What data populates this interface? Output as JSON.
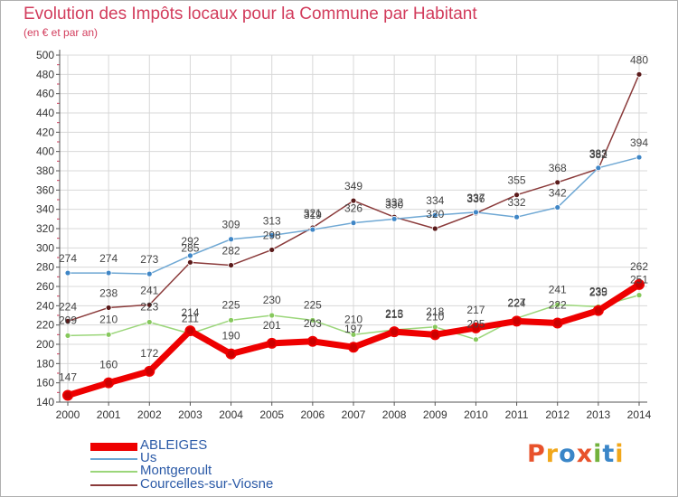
{
  "header": {
    "title": "Evolution des Impôts locaux pour la Commune par Habitant",
    "subtitle": "(en € et par an)"
  },
  "logo": {
    "text": "Proxiti",
    "colors": [
      "#e8522b",
      "#f1a71a",
      "#3a86c8",
      "#e8522b",
      "#73b23c",
      "#3a86c8",
      "#f1a71a"
    ]
  },
  "chart_data": {
    "type": "line",
    "x": [
      2000,
      2001,
      2002,
      2003,
      2004,
      2005,
      2006,
      2007,
      2008,
      2009,
      2010,
      2011,
      2012,
      2013,
      2014
    ],
    "ylim": [
      140,
      500
    ],
    "yticks": [
      140,
      160,
      180,
      200,
      220,
      240,
      260,
      280,
      300,
      320,
      340,
      360,
      380,
      400,
      420,
      440,
      460,
      480,
      500
    ],
    "grid": true,
    "legend": "bottom-left",
    "series": [
      {
        "name": "ABLEIGES",
        "color": "#ee0000",
        "values": [
          147,
          160,
          172,
          214,
          190,
          201,
          203,
          197,
          213,
          210,
          217,
          224,
          222,
          235,
          262
        ],
        "labels": [
          "147",
          "160",
          "172",
          "214",
          "190",
          "201",
          "203",
          "197",
          "213",
          "210",
          "217",
          "224",
          "222",
          "235",
          "262"
        ]
      },
      {
        "name": "Us",
        "color": "#6fa8d4",
        "values": [
          274,
          274,
          273,
          292,
          309,
          313,
          319,
          326,
          330,
          334,
          337,
          332,
          342,
          383,
          394
        ],
        "labels": [
          "274",
          "274",
          "273",
          "292",
          "309",
          "313",
          "319",
          "326",
          "330",
          "334",
          "337",
          "332",
          "342",
          "383",
          "394"
        ]
      },
      {
        "name": "Montgeroult",
        "color": "#9bd67a",
        "values": [
          209,
          210,
          223,
          211,
          225,
          230,
          225,
          210,
          215,
          218,
          205,
          227,
          241,
          239,
          251
        ],
        "labels": [
          "209",
          "210",
          "223",
          "211",
          "225",
          "230",
          "225",
          "210",
          "215",
          "218",
          "205",
          "227",
          "241",
          "239",
          "251"
        ]
      },
      {
        "name": "Courcelles-sur-Viosne",
        "color": "#8a3a3a",
        "values": [
          224,
          238,
          241,
          285,
          282,
          298,
          321,
          349,
          332,
          320,
          336,
          355,
          368,
          382,
          480
        ],
        "labels": [
          "224",
          "238",
          "241",
          "285",
          "282",
          "298",
          "321",
          "349",
          "332",
          "320",
          "336",
          "355",
          "368",
          "382",
          "480"
        ]
      }
    ]
  }
}
